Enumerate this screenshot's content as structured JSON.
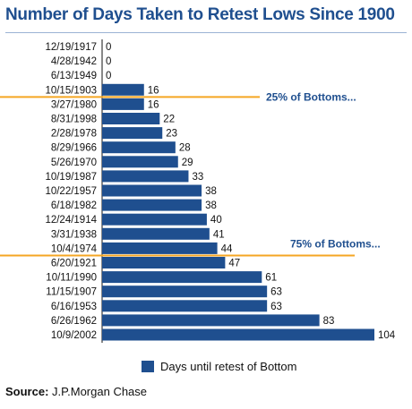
{
  "chart_data": {
    "type": "bar",
    "orientation": "horizontal",
    "title": "Number of Days Taken to Retest Lows Since 1900",
    "categories": [
      "12/19/1917",
      "4/28/1942",
      "6/13/1949",
      "10/15/1903",
      "3/27/1980",
      "8/31/1998",
      "2/28/1978",
      "8/29/1966",
      "5/26/1970",
      "10/19/1987",
      "10/22/1957",
      "6/18/1982",
      "12/24/1914",
      "3/31/1938",
      "10/4/1974",
      "6/20/1921",
      "10/11/1990",
      "11/15/1907",
      "6/16/1953",
      "6/26/1962",
      "10/9/2002"
    ],
    "series": [
      {
        "name": "Days until retest of Bottom",
        "values": [
          0,
          0,
          0,
          16,
          16,
          22,
          23,
          28,
          29,
          33,
          38,
          38,
          40,
          41,
          44,
          47,
          61,
          63,
          63,
          83,
          104
        ]
      }
    ],
    "annotations": [
      "25% of Bottoms...",
      "75% of Bottoms..."
    ],
    "xlim": [
      0,
      104
    ],
    "grid": false,
    "legend_position": "bottom",
    "color": "#1f4f8f",
    "annotation_line_color": "#f5a623"
  },
  "source": {
    "label": "Source:",
    "text": "J.P.Morgan Chase"
  }
}
